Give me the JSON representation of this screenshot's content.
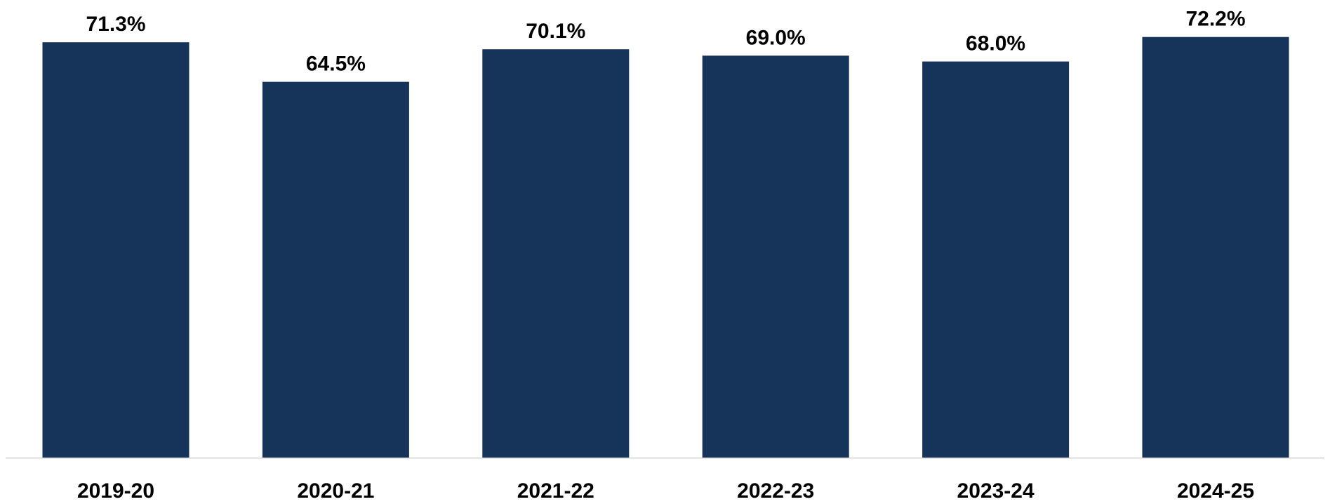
{
  "chart_data": {
    "type": "bar",
    "categories": [
      "2019-20",
      "2020-21",
      "2021-22",
      "2022-23",
      "2023-24",
      "2024-25"
    ],
    "values": [
      71.3,
      64.5,
      70.1,
      69.0,
      68.0,
      72.2
    ],
    "data_labels": [
      "71.3%",
      "64.5%",
      "70.1%",
      "69.0%",
      "68.0%",
      "72.2%"
    ],
    "title": "",
    "xlabel": "",
    "ylabel": "",
    "ylim": [
      0,
      80
    ],
    "grid": false,
    "legend": "none",
    "bar_color": "#16345a",
    "axis_color": "#d0d0d0"
  }
}
